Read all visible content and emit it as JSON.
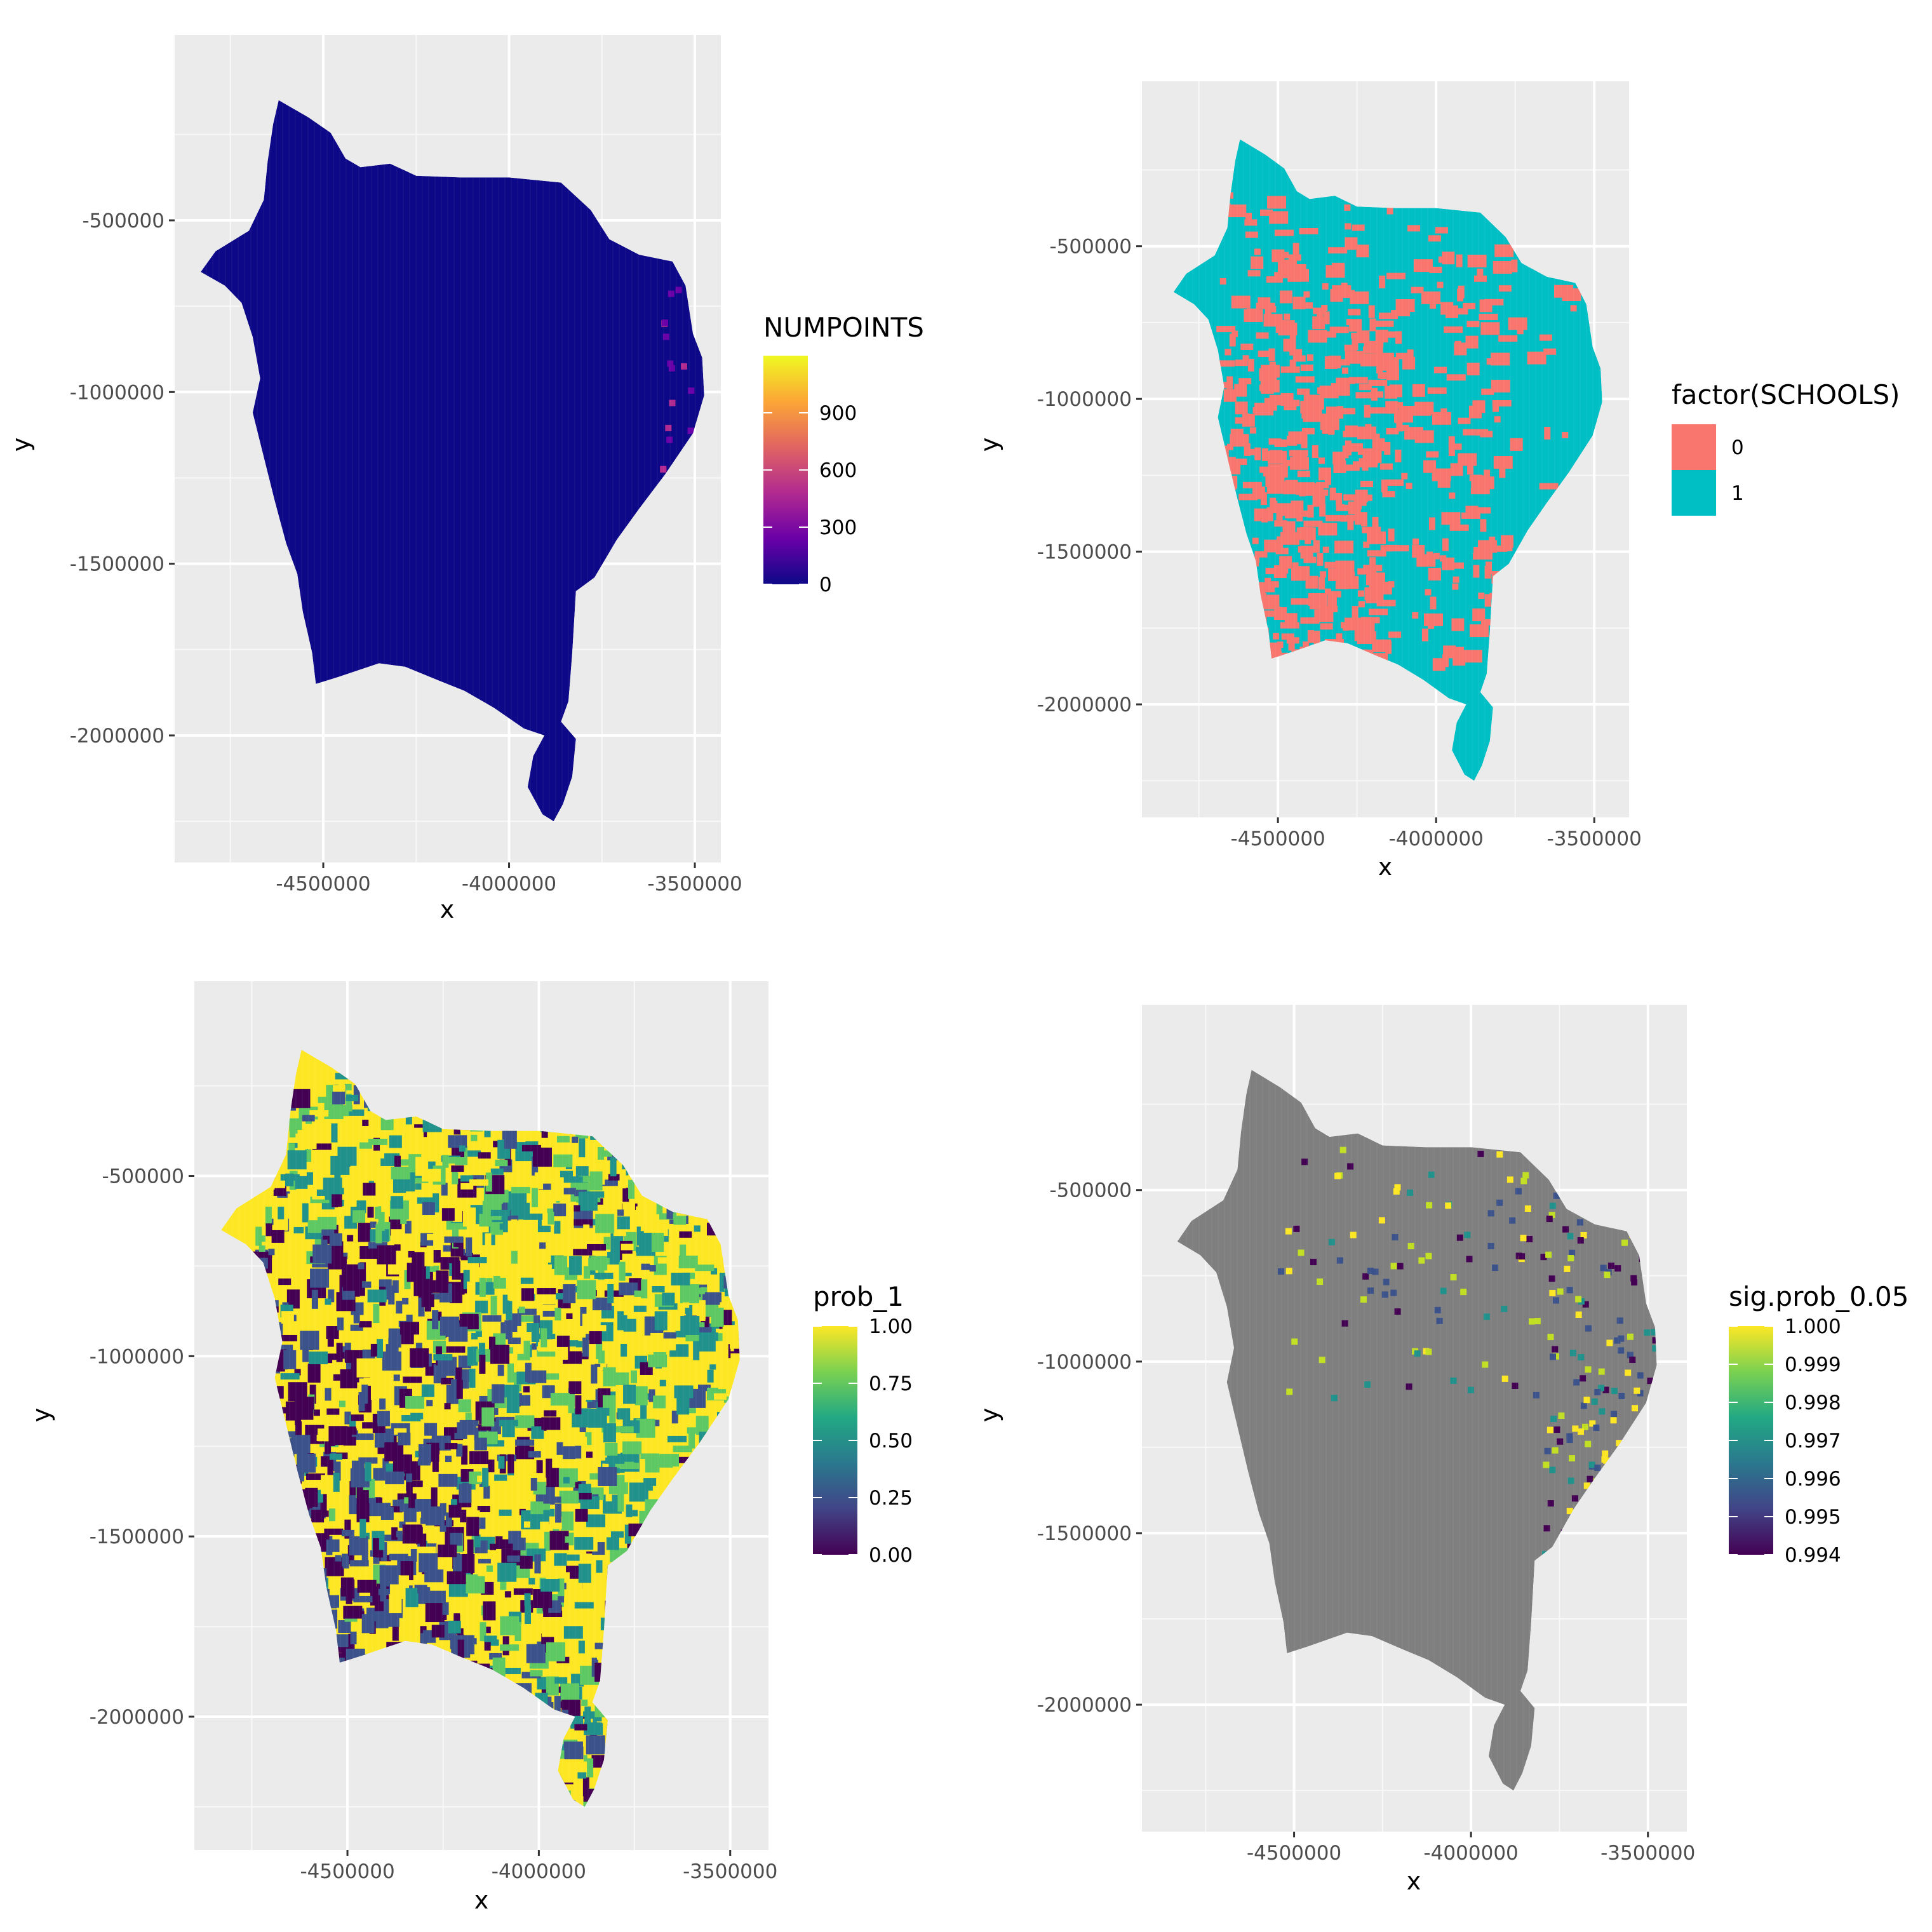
{
  "chart_data": [
    {
      "type": "heatmap",
      "xlabel": "x",
      "ylabel": "y",
      "xlim": [
        -4900000,
        -3430000
      ],
      "ylim": [
        -2370000,
        40000
      ],
      "x_ticks": [
        {
          "value": -4500000,
          "label": "-4500000"
        },
        {
          "value": -4000000,
          "label": "-4000000"
        },
        {
          "value": -3500000,
          "label": "-3500000"
        }
      ],
      "y_ticks": [
        {
          "value": -500000,
          "label": "-500000"
        },
        {
          "value": -1000000,
          "label": "-1000000"
        },
        {
          "value": -1500000,
          "label": "-1500000"
        },
        {
          "value": -2000000,
          "label": "-2000000"
        }
      ],
      "grid": true,
      "fill": "NUMPOINTS",
      "legend": {
        "title": "NUMPOINTS",
        "kind": "continuous",
        "palette": "plasma",
        "range": [
          0,
          1200
        ],
        "breaks": [
          0,
          300,
          600,
          900
        ],
        "labels": [
          "0",
          "300",
          "600",
          "900"
        ]
      },
      "region_summary": "mostly 0 across the region; isolated cells up to ~700 near the east coast"
    },
    {
      "type": "heatmap",
      "xlabel": "x",
      "ylabel": "y",
      "xlim": [
        -4930000,
        -3390000
      ],
      "ylim": [
        -2370000,
        40000
      ],
      "x_ticks": [
        {
          "value": -4500000,
          "label": "-4500000"
        },
        {
          "value": -4000000,
          "label": "-4000000"
        },
        {
          "value": -3500000,
          "label": "-3500000"
        }
      ],
      "y_ticks": [
        {
          "value": -500000,
          "label": "-500000"
        },
        {
          "value": -1000000,
          "label": "-1000000"
        },
        {
          "value": -1500000,
          "label": "-1500000"
        },
        {
          "value": -2000000,
          "label": "-2000000"
        }
      ],
      "grid": true,
      "fill": "factor(SCHOOLS)",
      "legend": {
        "title": "factor(SCHOOLS)",
        "kind": "discrete",
        "keys": [
          {
            "label": "0",
            "color": "#F8766D"
          },
          {
            "label": "1",
            "color": "#00BFC4"
          }
        ]
      },
      "region_summary": "1 dominates north and east; 0 concentrated in west-central interior"
    },
    {
      "type": "heatmap",
      "xlabel": "x",
      "ylabel": "y",
      "xlim": [
        -4900000,
        -3400000
      ],
      "ylim": [
        -2370000,
        40000
      ],
      "x_ticks": [
        {
          "value": -4500000,
          "label": "-4500000"
        },
        {
          "value": -4000000,
          "label": "-4000000"
        },
        {
          "value": -3500000,
          "label": "-3500000"
        }
      ],
      "y_ticks": [
        {
          "value": -500000,
          "label": "-500000"
        },
        {
          "value": -1000000,
          "label": "-1000000"
        },
        {
          "value": -1500000,
          "label": "-1500000"
        },
        {
          "value": -2000000,
          "label": "-2000000"
        }
      ],
      "grid": true,
      "fill": "prob_1",
      "legend": {
        "title": "prob_1",
        "kind": "continuous",
        "palette": "viridis",
        "range": [
          0,
          1
        ],
        "breaks": [
          0,
          0.25,
          0.5,
          0.75,
          1.0
        ],
        "labels": [
          "0.00",
          "0.25",
          "0.50",
          "0.75",
          "1.00"
        ]
      },
      "region_summary": "near 1.00 in north and east; near 0.00 in west-central and southwest"
    },
    {
      "type": "heatmap",
      "xlabel": "x",
      "ylabel": "y",
      "xlim": [
        -4930000,
        -3390000
      ],
      "ylim": [
        -2370000,
        40000
      ],
      "x_ticks": [
        {
          "value": -4500000,
          "label": "-4500000"
        },
        {
          "value": -4000000,
          "label": "-4000000"
        },
        {
          "value": -3500000,
          "label": "-3500000"
        }
      ],
      "y_ticks": [
        {
          "value": -500000,
          "label": "-500000"
        },
        {
          "value": -1000000,
          "label": "-1000000"
        },
        {
          "value": -1500000,
          "label": "-1500000"
        },
        {
          "value": -2000000,
          "label": "-2000000"
        }
      ],
      "grid": true,
      "fill": "sig.prob_0.05",
      "na_color": "#7F7F7F",
      "legend": {
        "title": "sig.prob_0.05",
        "kind": "continuous",
        "palette": "viridis",
        "range": [
          0.994,
          1.0
        ],
        "breaks": [
          0.994,
          0.995,
          0.996,
          0.997,
          0.998,
          0.999,
          1.0
        ],
        "labels": [
          "0.994",
          "0.995",
          "0.996",
          "0.997",
          "0.998",
          "0.999",
          "1.000"
        ]
      },
      "region_summary": "mostly NA (grey); scattered significant cells along the east coast and north"
    }
  ]
}
